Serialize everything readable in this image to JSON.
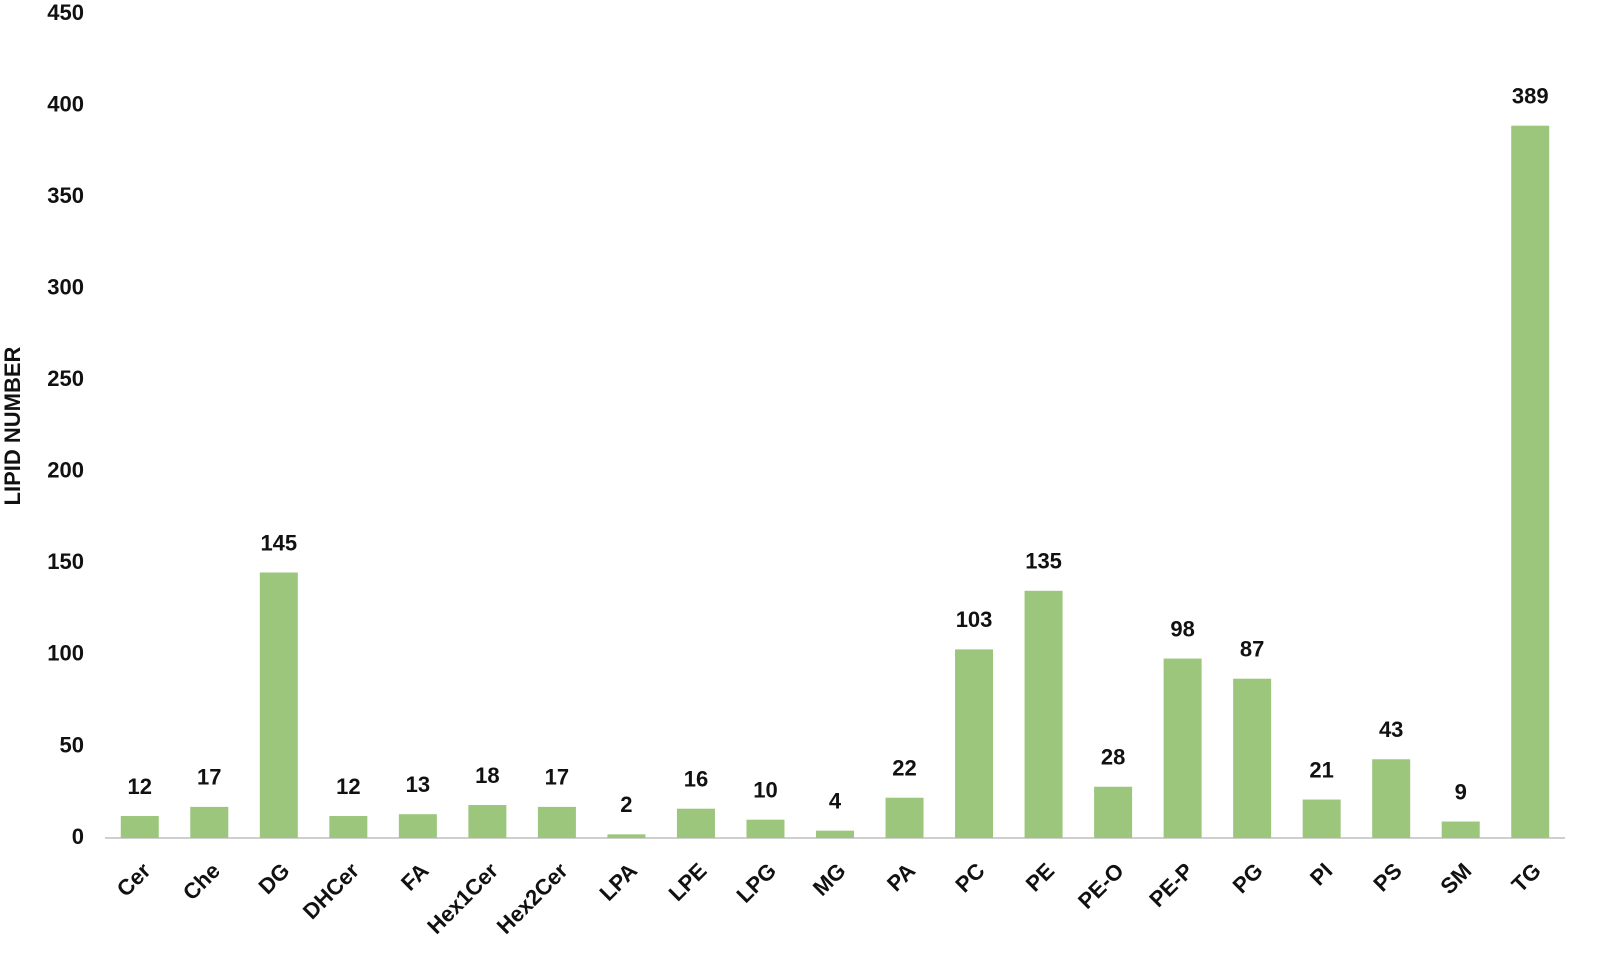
{
  "chart_data": {
    "type": "bar",
    "y_label": "LIPID NUMBER",
    "categories": [
      "Cer",
      "Che",
      "DG",
      "DHCer",
      "FA",
      "Hex1Cer",
      "Hex2Cer",
      "LPA",
      "LPE",
      "LPG",
      "MG",
      "PA",
      "PC",
      "PE",
      "PE-O",
      "PE-P",
      "PG",
      "PI",
      "PS",
      "SM",
      "TG"
    ],
    "values": [
      12,
      17,
      145,
      12,
      13,
      18,
      17,
      2,
      16,
      10,
      4,
      22,
      103,
      135,
      28,
      98,
      87,
      21,
      43,
      9,
      389
    ],
    "color": "#9bc67c",
    "ylim": [
      0,
      450
    ],
    "yticks": [
      0,
      50,
      100,
      150,
      200,
      250,
      300,
      350,
      400,
      450
    ],
    "grid": false
  }
}
